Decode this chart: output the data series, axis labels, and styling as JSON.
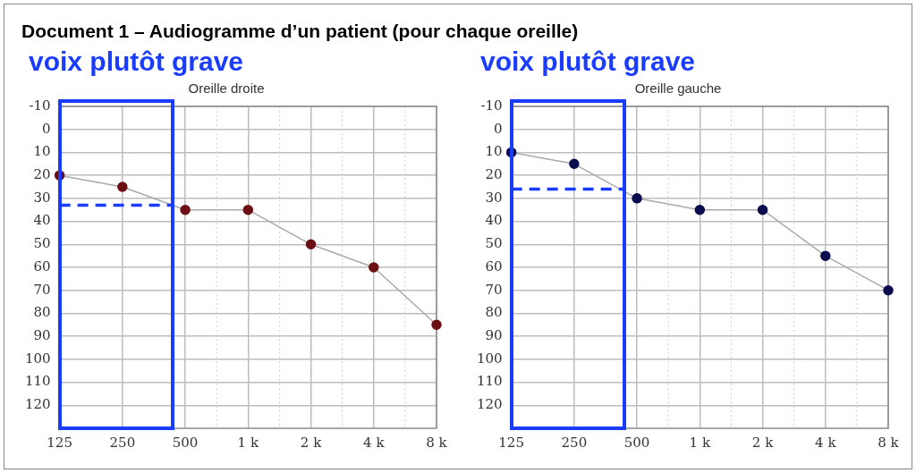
{
  "chart_data": [
    {
      "type": "line",
      "title": "Oreille droite",
      "annotations": [
        "Document 1 – Audiogramme d’un patient (pour chaque oreille)",
        "voix plutôt grave"
      ],
      "categories": [
        "125",
        "250",
        "500",
        "1 k",
        "2 k",
        "4 k",
        "8 k"
      ],
      "series": [
        {
          "color": "#6b0f14",
          "values": [
            20,
            25,
            35,
            35,
            50,
            60,
            85
          ]
        }
      ],
      "ylim": [
        130,
        -10
      ],
      "yticks": [
        -10,
        0,
        10,
        20,
        30,
        40,
        50,
        60,
        70,
        80,
        90,
        100,
        110,
        120
      ],
      "ref_lines": [
        {
          "axis": "y",
          "value": 33,
          "color": "#1a3cff",
          "line_style": "dashed"
        }
      ],
      "grid": true,
      "legend": false,
      "marker": "circle"
    },
    {
      "type": "line",
      "title": "Oreille gauche",
      "annotations": [
        "voix plutôt grave"
      ],
      "categories": [
        "125",
        "250",
        "500",
        "1 k",
        "2 k",
        "4 k",
        "8 k"
      ],
      "series": [
        {
          "color": "#0b0b4f",
          "values": [
            10,
            15,
            30,
            35,
            35,
            55,
            70
          ]
        }
      ],
      "ylim": [
        130,
        -10
      ],
      "yticks": [
        -10,
        0,
        10,
        20,
        30,
        40,
        50,
        60,
        70,
        80,
        90,
        100,
        110,
        120
      ],
      "ref_lines": [
        {
          "axis": "y",
          "value": 26,
          "color": "#1a3cff",
          "line_style": "dashed"
        }
      ],
      "grid": true,
      "legend": false,
      "marker": "circle"
    }
  ]
}
